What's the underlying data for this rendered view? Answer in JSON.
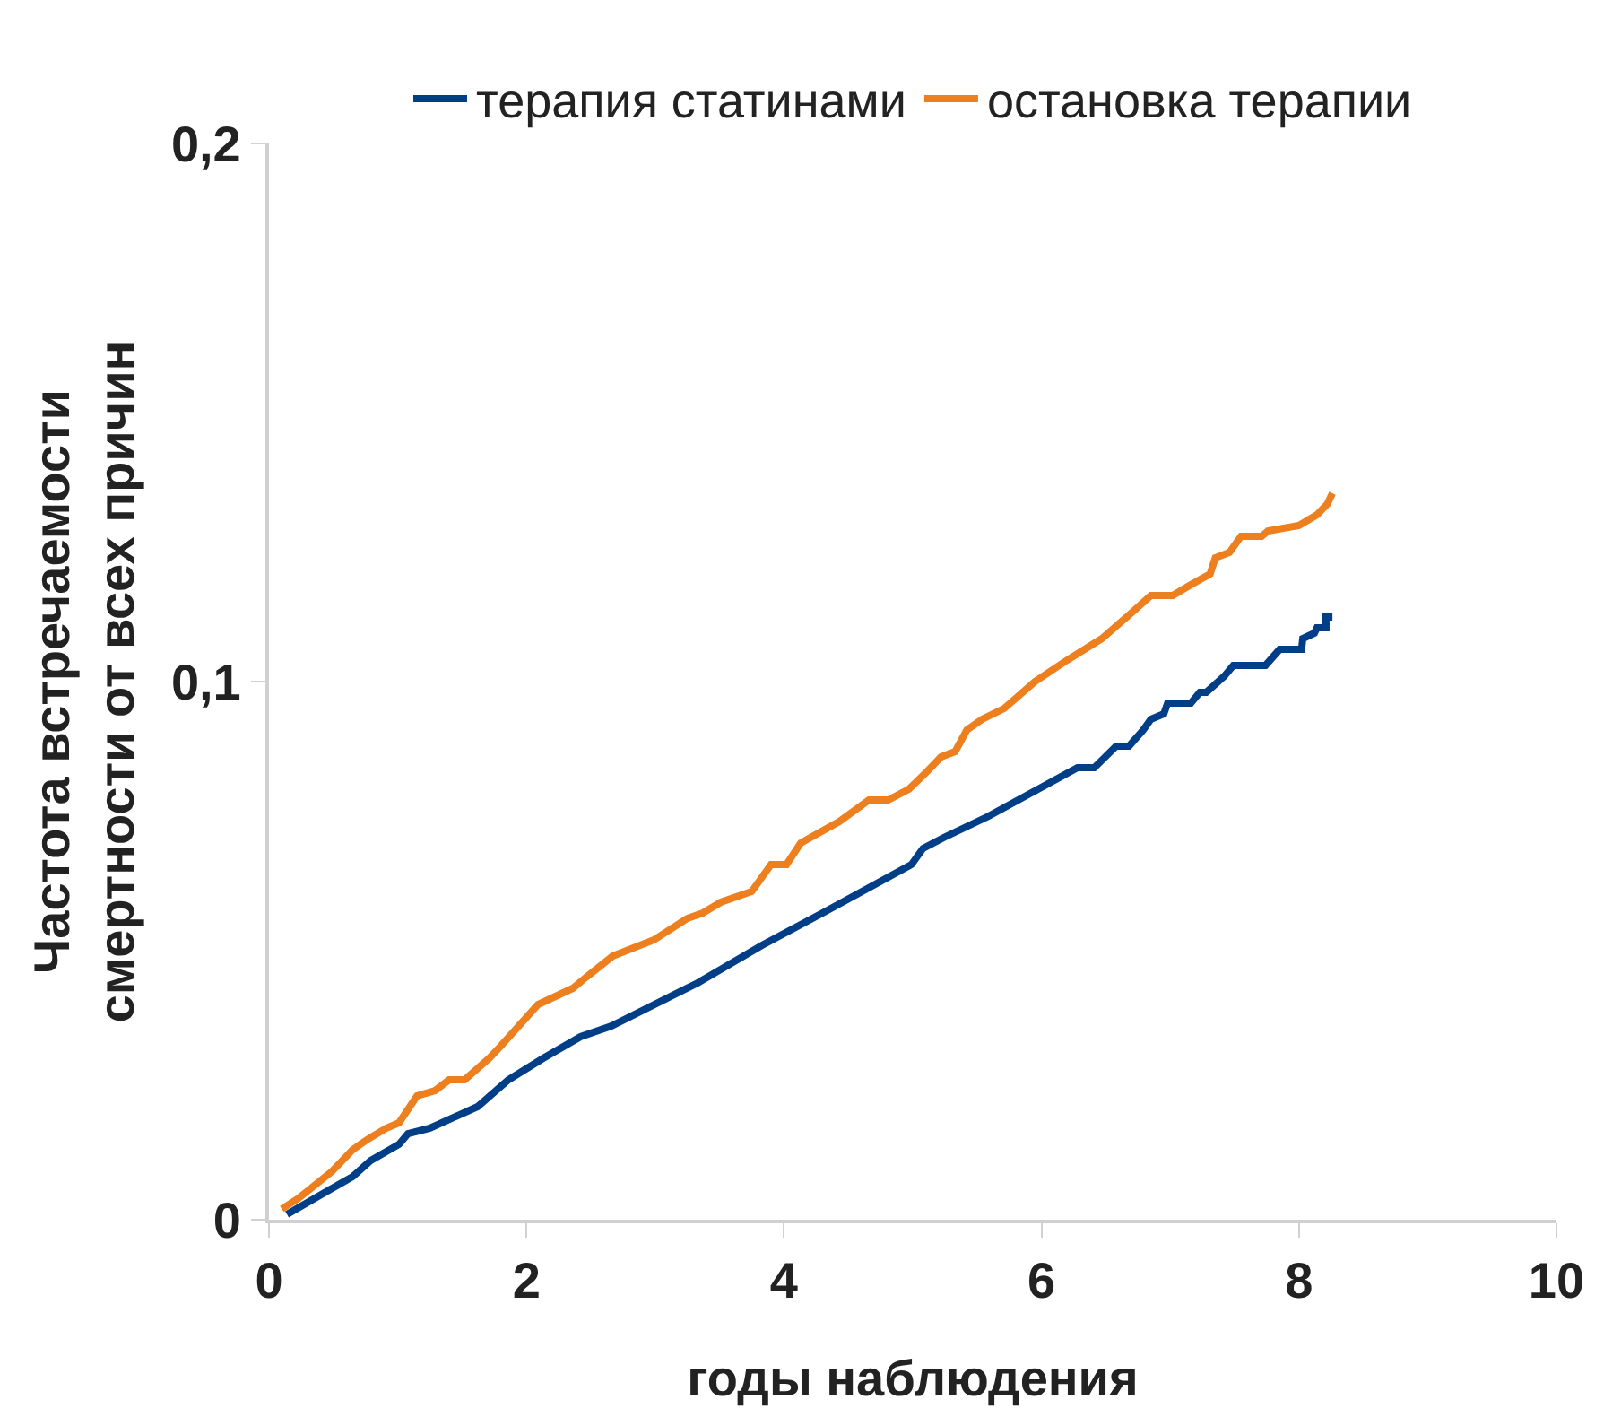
{
  "chart_data": {
    "type": "line",
    "xlabel": "годы наблюдения",
    "ylabel": "Частота встречаемости\nсмертности от всех причин",
    "xlim": [
      0,
      10
    ],
    "xticks": [
      0,
      2,
      4,
      6,
      8,
      10
    ],
    "ylim": [
      0,
      0.2
    ],
    "yticks": [
      {
        "value": 0,
        "label": "0"
      },
      {
        "value": 0.1,
        "label": "0,1"
      },
      {
        "value": 0.2,
        "label": "0,2"
      }
    ],
    "legend": "top",
    "marker": "none",
    "line_style": "solid",
    "series": [
      {
        "name": "терапия статинами",
        "color": "#003f87",
        "x": [
          0.14,
          0.43,
          0.65,
          0.79,
          1.01,
          1.08,
          1.25,
          1.62,
          1.86,
          2.13,
          2.42,
          2.66,
          3.33,
          3.83,
          4.3,
          4.99,
          5.08,
          5.24,
          5.59,
          6.28,
          6.41,
          6.58,
          6.68,
          6.79,
          6.85,
          6.95,
          6.98,
          7.16,
          7.23,
          7.28,
          7.42,
          7.49,
          7.74,
          7.85,
          8.02,
          8.03,
          8.12,
          8.14,
          8.21,
          8.21,
          8.26
        ],
        "values": [
          0.001,
          0.005,
          0.008,
          0.011,
          0.014,
          0.016,
          0.017,
          0.021,
          0.026,
          0.03,
          0.034,
          0.036,
          0.044,
          0.051,
          0.057,
          0.066,
          0.069,
          0.071,
          0.075,
          0.084,
          0.084,
          0.088,
          0.088,
          0.091,
          0.093,
          0.094,
          0.096,
          0.096,
          0.098,
          0.098,
          0.101,
          0.103,
          0.103,
          0.106,
          0.106,
          0.108,
          0.109,
          0.11,
          0.11,
          0.112,
          0.112
        ]
      },
      {
        "name": "остановка терапии",
        "color": "#ee7f1e",
        "x": [
          0.1,
          0.23,
          0.49,
          0.65,
          0.77,
          0.91,
          1.01,
          1.15,
          1.29,
          1.4,
          1.52,
          1.71,
          1.79,
          2.09,
          2.36,
          2.46,
          2.67,
          2.99,
          3.25,
          3.37,
          3.51,
          3.75,
          3.9,
          4.02,
          4.13,
          4.28,
          4.43,
          4.66,
          4.81,
          4.97,
          5.1,
          5.22,
          5.33,
          5.42,
          5.54,
          5.71,
          5.95,
          6.2,
          6.47,
          6.71,
          6.85,
          7.02,
          7.16,
          7.31,
          7.35,
          7.46,
          7.55,
          7.71,
          7.76,
          8.0,
          8.14,
          8.22,
          8.26
        ],
        "values": [
          0.002,
          0.004,
          0.009,
          0.013,
          0.015,
          0.017,
          0.018,
          0.023,
          0.024,
          0.026,
          0.026,
          0.03,
          0.032,
          0.04,
          0.043,
          0.045,
          0.049,
          0.052,
          0.056,
          0.057,
          0.059,
          0.061,
          0.066,
          0.066,
          0.07,
          0.072,
          0.074,
          0.078,
          0.078,
          0.08,
          0.083,
          0.086,
          0.087,
          0.091,
          0.093,
          0.095,
          0.1,
          0.104,
          0.108,
          0.113,
          0.116,
          0.116,
          0.118,
          0.12,
          0.123,
          0.124,
          0.127,
          0.127,
          0.128,
          0.129,
          0.131,
          0.133,
          0.135
        ]
      }
    ]
  }
}
